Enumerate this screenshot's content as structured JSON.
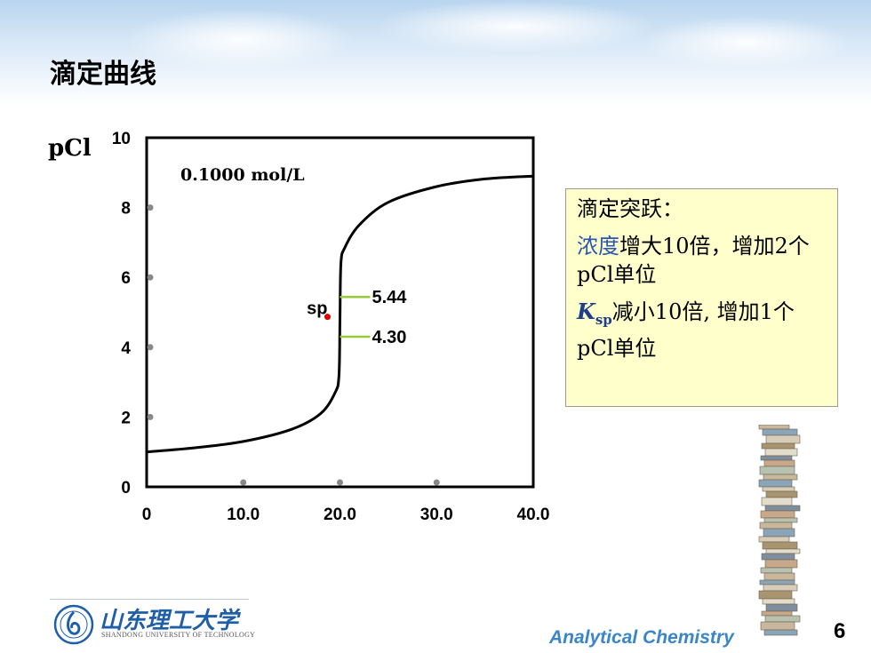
{
  "slide": {
    "title": "滴定曲线",
    "page_number": "6",
    "footer_course": "Analytical Chemistry",
    "university_cn": "山东理工大学",
    "university_en": "SHANDONG UNIVERSITY OF TECHNOLOGY"
  },
  "chart_data": {
    "type": "line",
    "ylabel": "pCl",
    "xlim": [
      0,
      40
    ],
    "ylim": [
      0,
      10
    ],
    "x_ticks": [
      "0",
      "10.0",
      "20.0",
      "30.0",
      "40.0"
    ],
    "y_ticks": [
      "0",
      "2",
      "4",
      "6",
      "8",
      "10"
    ],
    "concentration_label": "0.1000 mol/L",
    "series": [
      {
        "name": "0.1000 mol/L",
        "x": [
          0,
          5,
          10,
          15,
          18,
          19.5,
          19.9,
          20,
          20.1,
          20.5,
          22,
          25,
          30,
          35,
          40
        ],
        "y": [
          1.0,
          1.12,
          1.3,
          1.65,
          2.1,
          2.7,
          3.2,
          4.8,
          6.4,
          6.85,
          7.5,
          8.15,
          8.6,
          8.82,
          8.9
        ]
      }
    ],
    "equivalence_point": {
      "label": "sp",
      "x": 20,
      "y": 4.87,
      "color": "#e00000"
    },
    "annotations": [
      {
        "label": "5.44",
        "y": 5.44,
        "color": "#99cc33"
      },
      {
        "label": "4.30",
        "y": 4.3,
        "color": "#99cc33"
      }
    ]
  },
  "note": {
    "line1": "滴定突跃：",
    "line2_highlight": "浓度",
    "line2_rest": "增大10倍，增加2个pCl单位",
    "line3_k": "K",
    "line3_sub": "sp",
    "line3_rest": "减小10倍, 增加1个pCl单位",
    "highlight_color": "#2a56b3"
  }
}
